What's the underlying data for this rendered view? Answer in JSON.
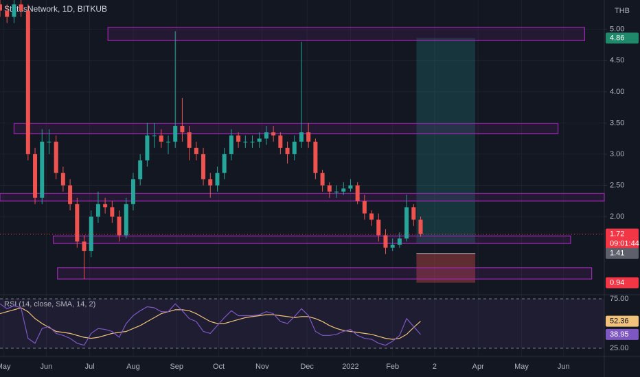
{
  "chart_data": {
    "type": "candlestick",
    "title": "StatusNetwork, 1D, BITKUB",
    "currency": "THB",
    "up_color": "#26a69a",
    "down_color": "#ef5350",
    "x": [
      0,
      5,
      10,
      15,
      20,
      25,
      30,
      35,
      40,
      45,
      50,
      55,
      60,
      65,
      70,
      75,
      80,
      85,
      90,
      95,
      100,
      105,
      110,
      115,
      120,
      125,
      130,
      135,
      140,
      145,
      150,
      155,
      160,
      165,
      170,
      175,
      180,
      185,
      190,
      195,
      200,
      205,
      210,
      215,
      220,
      225,
      230,
      235,
      240,
      245,
      250,
      255,
      260,
      265,
      270,
      275,
      280,
      285,
      290,
      295,
      300
    ],
    "open": [
      5.4,
      5.3,
      5.2,
      5.4,
      5.3,
      3.0,
      2.3,
      3.2,
      3.2,
      2.7,
      2.5,
      2.2,
      1.6,
      1.45,
      2.0,
      2.2,
      2.15,
      2.0,
      1.7,
      2.2,
      2.6,
      2.9,
      3.3,
      3.3,
      3.2,
      3.2,
      3.45,
      3.35,
      3.1,
      3.0,
      2.6,
      2.5,
      2.7,
      3.0,
      3.3,
      3.2,
      3.2,
      3.2,
      3.25,
      3.35,
      3.3,
      3.1,
      3.0,
      3.2,
      3.35,
      3.2,
      2.7,
      2.5,
      2.4,
      2.4,
      2.45,
      2.5,
      2.25,
      2.05,
      1.95,
      1.7,
      1.5,
      1.55,
      1.65,
      2.15,
      1.95
    ],
    "high": [
      5.5,
      5.4,
      5.5,
      5.5,
      5.4,
      3.1,
      3.4,
      3.4,
      3.3,
      2.8,
      2.6,
      2.3,
      1.7,
      2.1,
      2.4,
      2.3,
      2.25,
      2.1,
      2.3,
      2.7,
      3.0,
      3.5,
      3.5,
      3.4,
      3.3,
      4.97,
      3.9,
      3.45,
      3.2,
      3.1,
      2.7,
      2.8,
      3.1,
      3.4,
      3.35,
      3.3,
      3.3,
      3.35,
      3.45,
      3.45,
      3.35,
      3.2,
      3.3,
      4.8,
      3.5,
      3.25,
      2.75,
      2.55,
      2.5,
      2.55,
      2.6,
      2.55,
      2.35,
      2.1,
      2.05,
      1.8,
      1.65,
      1.75,
      2.35,
      2.2,
      2.0
    ],
    "low": [
      5.2,
      5.1,
      5.1,
      5.2,
      2.9,
      2.2,
      2.2,
      3.0,
      2.6,
      2.4,
      2.1,
      1.5,
      1.0,
      1.35,
      1.9,
      2.05,
      1.9,
      1.6,
      1.65,
      2.1,
      2.5,
      2.8,
      3.1,
      3.1,
      3.0,
      3.1,
      3.2,
      2.9,
      2.9,
      2.5,
      2.3,
      2.4,
      2.6,
      2.9,
      3.1,
      3.1,
      3.1,
      3.1,
      3.15,
      3.2,
      3.0,
      2.85,
      2.9,
      3.1,
      3.1,
      2.6,
      2.4,
      2.3,
      2.3,
      2.35,
      2.4,
      2.2,
      1.95,
      1.85,
      1.6,
      1.4,
      1.45,
      1.5,
      1.6,
      1.85,
      1.68
    ],
    "close": [
      5.3,
      5.2,
      5.4,
      5.3,
      3.0,
      2.3,
      3.2,
      3.2,
      2.7,
      2.5,
      2.2,
      1.6,
      1.45,
      2.0,
      2.2,
      2.15,
      2.0,
      1.7,
      2.2,
      2.6,
      2.9,
      3.3,
      3.3,
      3.2,
      3.2,
      3.45,
      3.35,
      3.1,
      3.0,
      2.6,
      2.5,
      2.7,
      3.0,
      3.3,
      3.2,
      3.2,
      3.2,
      3.25,
      3.35,
      3.3,
      3.1,
      3.0,
      3.2,
      3.35,
      3.2,
      2.7,
      2.5,
      2.4,
      2.4,
      2.45,
      2.5,
      2.25,
      2.05,
      1.95,
      1.7,
      1.5,
      1.55,
      1.65,
      2.15,
      1.95,
      1.72
    ],
    "countdown": "09:01:44",
    "xlim": [
      0,
      431
    ],
    "xticks": [
      {
        "value": 2.5,
        "label": "May"
      },
      {
        "value": 33,
        "label": "Jun"
      },
      {
        "value": 64,
        "label": "Jul"
      },
      {
        "value": 95,
        "label": "Aug"
      },
      {
        "value": 126,
        "label": "Sep"
      },
      {
        "value": 156,
        "label": "Oct"
      },
      {
        "value": 187,
        "label": "Nov"
      },
      {
        "value": 219,
        "label": "Dec"
      },
      {
        "value": 250,
        "label": "2022"
      },
      {
        "value": 280,
        "label": "Feb"
      },
      {
        "value": 310,
        "label": "2"
      },
      {
        "value": 341,
        "label": "Apr"
      },
      {
        "value": 372,
        "label": "May"
      },
      {
        "value": 402,
        "label": "Jun"
      }
    ],
    "ylim": [
      0.77,
      5.47
    ],
    "yticks": [
      {
        "value": 2.0,
        "label": "2.00"
      },
      {
        "value": 2.5,
        "label": "2.50"
      },
      {
        "value": 3.0,
        "label": "3.00"
      },
      {
        "value": 3.5,
        "label": "3.50"
      },
      {
        "value": 4.0,
        "label": "4.00"
      },
      {
        "value": 4.5,
        "label": "4.50"
      },
      {
        "value": 5.0,
        "label": "5.00"
      }
    ],
    "grid": true,
    "zones": [
      {
        "x": [
          77,
          417
        ],
        "y": [
          4.82,
          5.03
        ],
        "color": "#9c27b0"
      },
      {
        "x": [
          10,
          398
        ],
        "y": [
          3.33,
          3.49
        ],
        "color": "#9c27b0"
      },
      {
        "x": [
          0,
          431
        ],
        "y": [
          2.25,
          2.37
        ],
        "color": "#9c27b0"
      },
      {
        "x": [
          38,
          407
        ],
        "y": [
          1.57,
          1.69
        ],
        "color": "#9c27b0"
      },
      {
        "x": [
          41,
          422
        ],
        "y": [
          1.0,
          1.18
        ],
        "color": "#9c27b0"
      }
    ],
    "position": {
      "x": [
        297,
        339
      ],
      "target": 4.86,
      "entry": 1.57,
      "stop_top": 1.41,
      "stop": 0.94,
      "profit_color": "#26a69a",
      "loss_color": "#ef5350"
    },
    "indicator": {
      "title": "RSI (14, close, SMA, 14, 2)",
      "ylim": [
        22.2,
        77.8
      ],
      "yticks": [
        {
          "value": 75,
          "label": "75.00"
        },
        {
          "value": 25,
          "label": "25.00"
        }
      ],
      "band_color": "#7e57c2",
      "series": [
        {
          "color": "#f0c27b",
          "values": [
            60,
            62,
            64,
            66,
            62,
            55,
            50,
            46,
            42,
            41,
            40,
            38,
            36,
            35,
            36,
            38,
            40,
            41,
            42,
            45,
            48,
            52,
            56,
            60,
            62,
            64,
            64,
            63,
            60,
            56,
            52,
            50,
            50,
            52,
            54,
            56,
            57,
            58,
            59,
            59,
            58,
            57,
            56,
            57,
            57,
            55,
            52,
            48,
            45,
            43,
            42,
            41,
            40,
            39,
            37,
            35,
            34,
            35,
            39,
            46,
            52.36
          ]
        },
        {
          "color": "#7e57c2",
          "values": [
            70,
            65,
            68,
            66,
            35,
            30,
            45,
            47,
            40,
            38,
            35,
            30,
            28,
            40,
            45,
            44,
            42,
            36,
            50,
            58,
            63,
            67,
            66,
            62,
            62,
            70,
            63,
            55,
            52,
            42,
            40,
            48,
            56,
            63,
            58,
            58,
            58,
            59,
            62,
            60,
            52,
            50,
            57,
            65,
            58,
            42,
            38,
            38,
            39,
            42,
            44,
            38,
            35,
            34,
            30,
            28,
            32,
            38,
            55,
            47,
            38.95
          ]
        }
      ]
    }
  }
}
